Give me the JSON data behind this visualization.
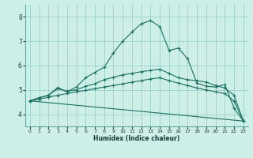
{
  "background_color": "#ceeee8",
  "grid_color": "#9bcfca",
  "line_color": "#1a7060",
  "xlabel": "Humidex (Indice chaleur)",
  "xlim": [
    -0.5,
    23.5
  ],
  "ylim": [
    3.5,
    8.5
  ],
  "yticks": [
    4,
    5,
    6,
    7,
    8
  ],
  "xticks": [
    0,
    1,
    2,
    3,
    4,
    5,
    6,
    7,
    8,
    9,
    10,
    11,
    12,
    13,
    14,
    15,
    16,
    17,
    18,
    19,
    20,
    21,
    22,
    23
  ],
  "series": [
    {
      "x": [
        0,
        1,
        2,
        3,
        4,
        5,
        6,
        7,
        8,
        9,
        10,
        11,
        12,
        13,
        14,
        15,
        16,
        17,
        18,
        19,
        20,
        21,
        22,
        23
      ],
      "y": [
        4.55,
        4.68,
        4.78,
        5.1,
        4.92,
        5.12,
        5.5,
        5.72,
        5.93,
        6.52,
        7.0,
        7.38,
        7.72,
        7.85,
        7.6,
        6.62,
        6.72,
        6.28,
        5.28,
        5.15,
        5.12,
        5.22,
        4.25,
        3.72
      ]
    },
    {
      "x": [
        0,
        1,
        2,
        3,
        4,
        5,
        6,
        7,
        8,
        9,
        10,
        11,
        12,
        13,
        14,
        15,
        16,
        17,
        18,
        19,
        20,
        21,
        22,
        23
      ],
      "y": [
        4.55,
        4.68,
        4.78,
        5.05,
        4.95,
        5.0,
        5.15,
        5.25,
        5.42,
        5.52,
        5.62,
        5.68,
        5.75,
        5.8,
        5.85,
        5.68,
        5.5,
        5.42,
        5.38,
        5.32,
        5.18,
        5.08,
        4.78,
        3.72
      ]
    },
    {
      "x": [
        0,
        1,
        2,
        3,
        4,
        5,
        6,
        7,
        8,
        9,
        10,
        11,
        12,
        13,
        14,
        15,
        16,
        17,
        18,
        19,
        20,
        21,
        22,
        23
      ],
      "y": [
        4.55,
        4.62,
        4.7,
        4.78,
        4.85,
        4.92,
        4.98,
        5.05,
        5.12,
        5.18,
        5.25,
        5.32,
        5.38,
        5.45,
        5.5,
        5.38,
        5.28,
        5.18,
        5.08,
        5.0,
        4.92,
        4.85,
        4.55,
        3.72
      ]
    },
    {
      "x": [
        0,
        23
      ],
      "y": [
        4.55,
        3.72
      ],
      "no_markers": true
    }
  ]
}
